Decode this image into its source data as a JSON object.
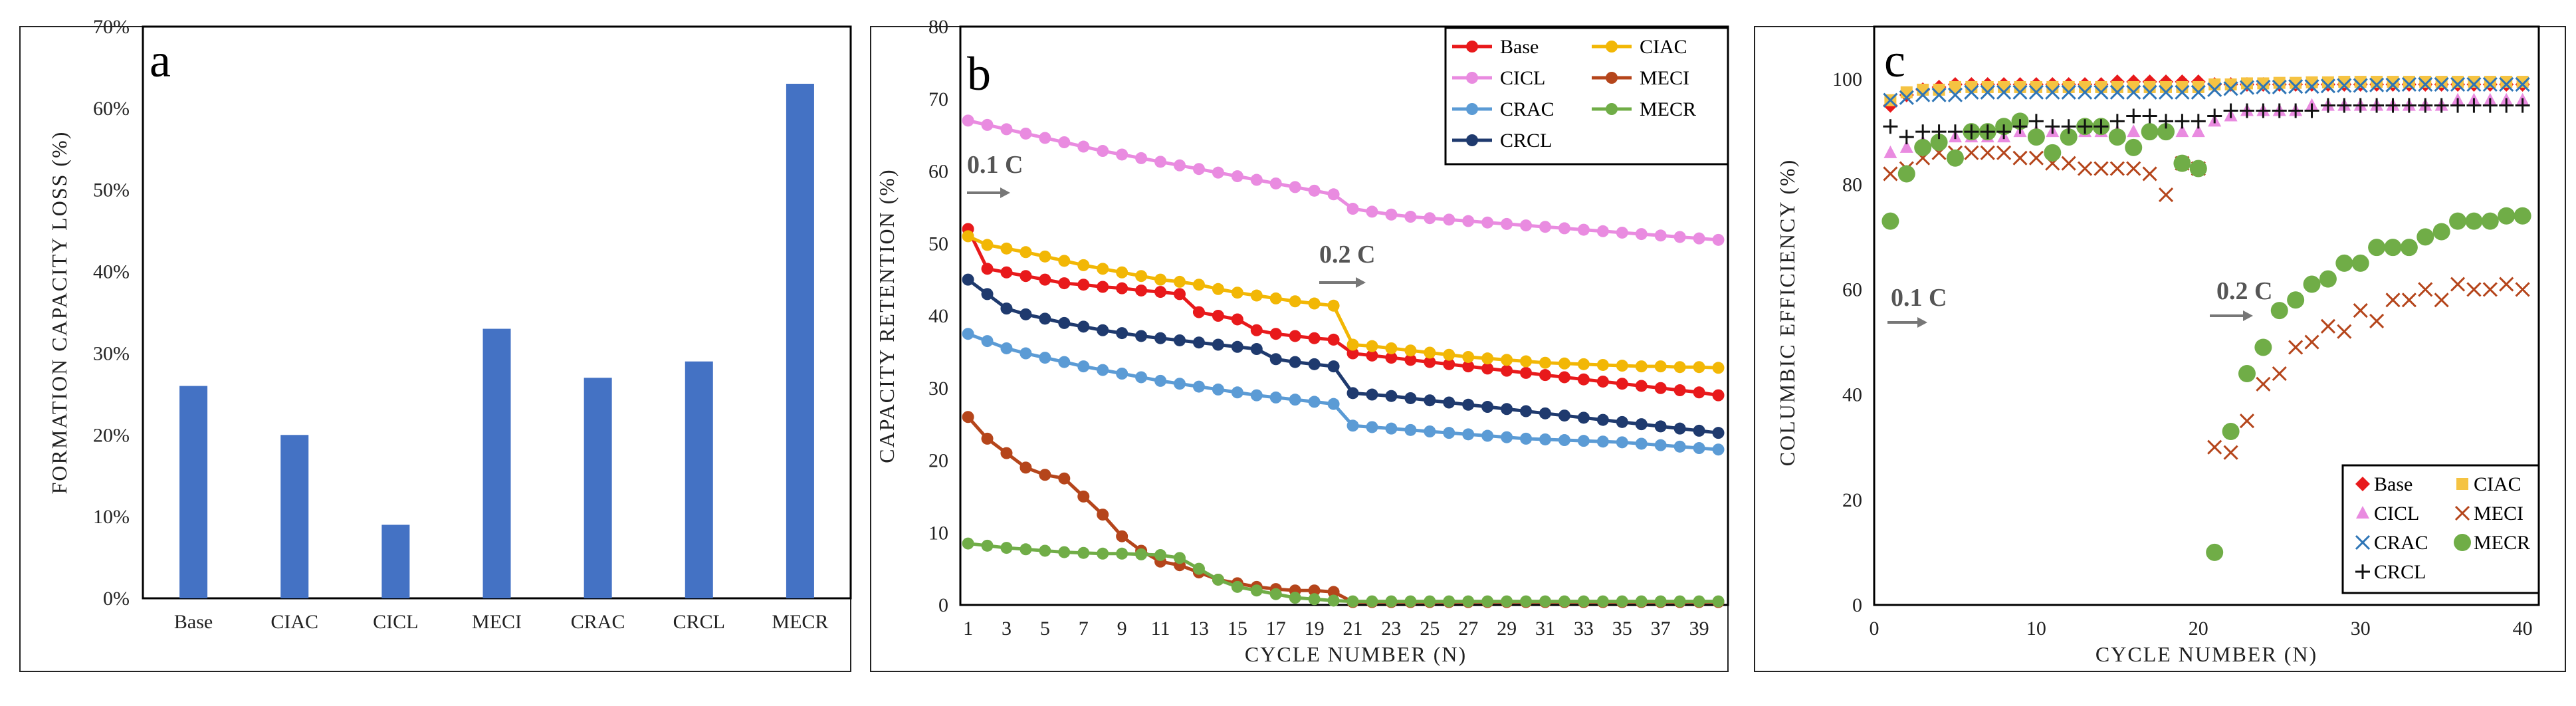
{
  "chart_data": [
    {
      "type": "bar",
      "panel_label": "a",
      "title": "",
      "xlabel": "",
      "ylabel": "FORMATION CAPACITY LOSS (%)",
      "categories": [
        "Base",
        "CIAC",
        "CICL",
        "MECI",
        "CRAC",
        "CRCL",
        "MECR"
      ],
      "values": [
        26,
        20,
        9,
        33,
        27,
        29,
        63
      ],
      "ylim": [
        0,
        70
      ],
      "yticks": [
        "0%",
        "10%",
        "20%",
        "30%",
        "40%",
        "50%",
        "60%",
        "70%"
      ],
      "bar_color": "#4472C4"
    },
    {
      "type": "line",
      "panel_label": "b",
      "xlabel": "CYCLE NUMBER (N)",
      "ylabel": "CAPACITY RETENTION (%)",
      "xlim": [
        1,
        40
      ],
      "ylim": [
        0,
        80
      ],
      "xticks": [
        "1",
        "3",
        "5",
        "7",
        "9",
        "11",
        "13",
        "15",
        "17",
        "19",
        "21",
        "23",
        "25",
        "27",
        "29",
        "31",
        "33",
        "35",
        "37",
        "39"
      ],
      "yticks": [
        "0",
        "10",
        "20",
        "30",
        "40",
        "50",
        "60",
        "70",
        "80"
      ],
      "annotations": [
        "0.1 C",
        "0.2 C"
      ],
      "legend_position": "top-right",
      "series": [
        {
          "name": "Base",
          "color": "#E8191B",
          "values": [
            52,
            46.5,
            46,
            45.5,
            45,
            44.5,
            44.3,
            44,
            43.8,
            43.5,
            43.3,
            43,
            40.5,
            40,
            39.5,
            38,
            37.5,
            37.2,
            36.9,
            36.7,
            34.8,
            34.5,
            34.2,
            33.9,
            33.6,
            33.3,
            33,
            32.7,
            32.4,
            32.1,
            31.8,
            31.5,
            31.2,
            30.9,
            30.6,
            30.3,
            30,
            29.7,
            29.4,
            29
          ]
        },
        {
          "name": "CIAC",
          "color": "#F2B705",
          "values": [
            51,
            49.8,
            49.3,
            48.8,
            48.2,
            47.6,
            47,
            46.5,
            46,
            45.5,
            45,
            44.7,
            44.3,
            43.7,
            43.2,
            42.8,
            42.4,
            42,
            41.7,
            41.4,
            36,
            35.8,
            35.5,
            35.2,
            34.9,
            34.6,
            34.3,
            34.1,
            33.9,
            33.7,
            33.5,
            33.4,
            33.3,
            33.2,
            33.1,
            33,
            33,
            32.9,
            32.9,
            32.8
          ]
        },
        {
          "name": "CICL",
          "color": "#E98BE0",
          "values": [
            67,
            66.4,
            65.8,
            65.2,
            64.6,
            64,
            63.4,
            62.8,
            62.3,
            61.8,
            61.3,
            60.8,
            60.3,
            59.8,
            59.3,
            58.8,
            58.3,
            57.8,
            57.3,
            56.8,
            54.8,
            54.4,
            54,
            53.7,
            53.5,
            53.3,
            53.1,
            52.9,
            52.7,
            52.5,
            52.3,
            52.1,
            51.9,
            51.7,
            51.5,
            51.3,
            51.1,
            50.9,
            50.7,
            50.5
          ]
        },
        {
          "name": "MECI",
          "color": "#B5451B",
          "values": [
            26,
            23,
            21,
            19,
            18,
            17.5,
            15,
            12.5,
            9.5,
            7.5,
            6,
            5.5,
            4.5,
            3.5,
            3,
            2.5,
            2.2,
            2,
            2,
            1.8,
            0.4,
            0.4,
            0.4,
            0.4,
            0.4,
            0.4,
            0.4,
            0.4,
            0.4,
            0.4,
            0.4,
            0.4,
            0.4,
            0.4,
            0.4,
            0.4,
            0.4,
            0.4,
            0.4,
            0.4
          ]
        },
        {
          "name": "CRAC",
          "color": "#5B9BD5",
          "values": [
            37.5,
            36.5,
            35.5,
            34.8,
            34.2,
            33.6,
            33,
            32.5,
            32,
            31.5,
            31,
            30.6,
            30.2,
            29.8,
            29.4,
            29,
            28.7,
            28.4,
            28.1,
            27.8,
            24.8,
            24.6,
            24.4,
            24.2,
            24,
            23.8,
            23.6,
            23.4,
            23.2,
            23,
            22.9,
            22.8,
            22.7,
            22.6,
            22.5,
            22.3,
            22.1,
            21.9,
            21.7,
            21.5
          ]
        },
        {
          "name": "MECR",
          "color": "#70AD47",
          "values": [
            8.5,
            8.2,
            7.9,
            7.7,
            7.5,
            7.3,
            7.2,
            7.1,
            7.1,
            7,
            6.9,
            6.5,
            5,
            3.5,
            2.5,
            2,
            1.5,
            1,
            0.8,
            0.6,
            0.5,
            0.5,
            0.5,
            0.5,
            0.5,
            0.5,
            0.5,
            0.5,
            0.5,
            0.5,
            0.5,
            0.5,
            0.5,
            0.5,
            0.5,
            0.5,
            0.5,
            0.5,
            0.5,
            0.5
          ]
        },
        {
          "name": "CRCL",
          "color": "#1F3A6E",
          "values": [
            45,
            43,
            41,
            40.2,
            39.6,
            39,
            38.5,
            38,
            37.6,
            37.2,
            36.9,
            36.6,
            36.3,
            36,
            35.7,
            35.4,
            34,
            33.6,
            33.3,
            33,
            29.3,
            29.1,
            28.9,
            28.6,
            28.3,
            28,
            27.7,
            27.4,
            27.1,
            26.8,
            26.5,
            26.2,
            25.9,
            25.6,
            25.3,
            25,
            24.7,
            24.4,
            24.1,
            23.8
          ]
        }
      ]
    },
    {
      "type": "scatter",
      "panel_label": "c",
      "xlabel": "CYCLE NUMBER (N)",
      "ylabel": "COLUMBIC EFFICIENCY (%)",
      "xlim": [
        0,
        40
      ],
      "ylim": [
        0,
        110
      ],
      "xticks": [
        "0",
        "10",
        "20",
        "30",
        "40"
      ],
      "yticks": [
        "0",
        "20",
        "40",
        "60",
        "80",
        "100"
      ],
      "annotations": [
        "0.1 C",
        "0.2 C"
      ],
      "legend_position": "bottom-right",
      "series": [
        {
          "name": "Base",
          "marker": "diamond",
          "color": "#E8191B",
          "values": [
            95,
            97,
            98,
            98.5,
            99,
            99,
            99,
            99,
            99,
            99,
            99,
            99,
            99,
            99,
            99.5,
            99.5,
            99.5,
            99.5,
            99.5,
            99.5,
            99,
            99,
            99,
            99,
            99,
            99,
            99,
            99,
            99,
            99,
            99,
            99,
            99,
            99,
            99,
            99,
            99,
            99,
            99,
            99
          ]
        },
        {
          "name": "CIAC",
          "marker": "square",
          "color": "#F5C342",
          "values": [
            96,
            97.5,
            98,
            98,
            98.5,
            98.5,
            98.5,
            98.5,
            98.5,
            98.5,
            98.5,
            98.5,
            98.5,
            98.5,
            98.5,
            98.5,
            98.5,
            98.5,
            98.5,
            98.5,
            99,
            99,
            99.2,
            99.2,
            99.3,
            99.3,
            99.4,
            99.4,
            99.5,
            99.5,
            99.5,
            99.5,
            99.5,
            99.5,
            99.5,
            99.5,
            99.5,
            99.5,
            99.5,
            99.5
          ]
        },
        {
          "name": "CICL",
          "marker": "triangle",
          "color": "#E98BE0",
          "values": [
            86,
            87,
            88,
            88,
            89,
            89,
            89,
            89,
            90,
            90,
            90,
            90,
            90,
            90,
            90,
            90,
            90,
            90,
            90,
            90,
            92,
            93,
            94,
            94,
            94,
            94,
            95,
            95,
            95,
            95,
            95,
            95,
            95,
            95,
            95,
            96,
            96,
            96,
            96,
            96
          ]
        },
        {
          "name": "MECI",
          "marker": "x",
          "color": "#B5451B",
          "values": [
            82,
            83,
            85,
            86,
            86,
            86,
            86,
            86,
            85,
            85,
            84,
            84,
            83,
            83,
            83,
            83,
            82,
            78,
            84,
            83,
            30,
            29,
            35,
            42,
            44,
            49,
            50,
            53,
            52,
            56,
            54,
            58,
            58,
            60,
            58,
            61,
            60,
            60,
            61,
            60
          ]
        },
        {
          "name": "CRAC",
          "marker": "x",
          "color": "#2E75B6",
          "values": [
            96,
            96.5,
            97,
            97,
            97,
            97.5,
            97.5,
            97.5,
            97.5,
            97.5,
            97.5,
            97.5,
            97.5,
            97.5,
            97.5,
            97.5,
            97.5,
            97.5,
            97.5,
            97.5,
            98,
            98.2,
            98.4,
            98.5,
            98.5,
            98.6,
            98.6,
            98.7,
            98.8,
            98.8,
            98.9,
            98.9,
            99,
            99,
            99,
            99,
            99,
            99,
            99,
            99
          ]
        },
        {
          "name": "MECR",
          "marker": "circle",
          "color": "#70AD47",
          "values": [
            73,
            82,
            87,
            88,
            85,
            90,
            90,
            91,
            92,
            89,
            86,
            89,
            91,
            91,
            89,
            87,
            90,
            90,
            84,
            83,
            10,
            33,
            44,
            49,
            56,
            58,
            61,
            62,
            65,
            65,
            68,
            68,
            68,
            70,
            71,
            73,
            73,
            73,
            74,
            74
          ]
        },
        {
          "name": "CRCL",
          "marker": "plus",
          "color": "#111111",
          "values": [
            91,
            89,
            90,
            90,
            90,
            90,
            90,
            90,
            91,
            92,
            91,
            91,
            91,
            91,
            92,
            93,
            93,
            92,
            92,
            92,
            93,
            94,
            94,
            94,
            94,
            94,
            94,
            95,
            95,
            95,
            95,
            95,
            95,
            95,
            95,
            95,
            95,
            95,
            95,
            95
          ]
        }
      ]
    }
  ]
}
